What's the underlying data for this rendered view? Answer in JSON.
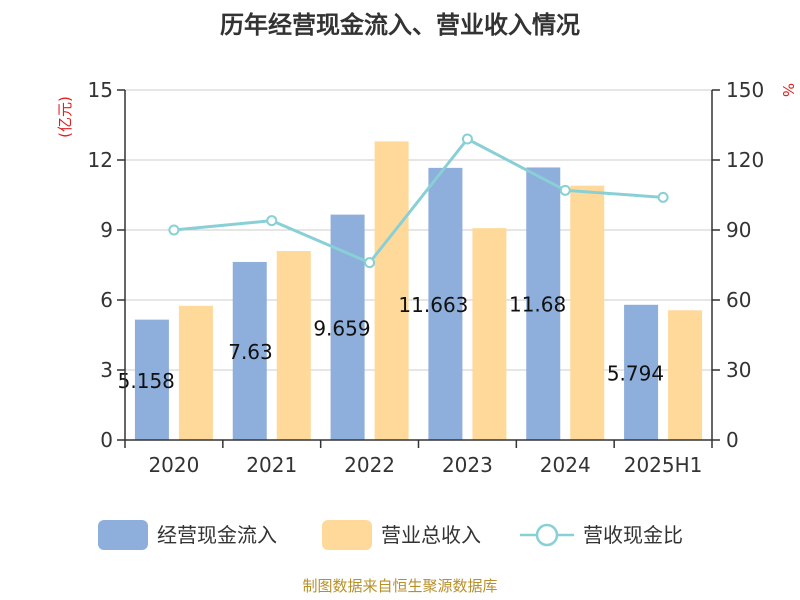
{
  "chart_data": {
    "type": "bar",
    "title": "历年经营现金流入、营业收入情况",
    "categories": [
      "2020",
      "2021",
      "2022",
      "2023",
      "2024",
      "2025H1"
    ],
    "y_left": {
      "unit": "(亿元)",
      "range": [
        0,
        15
      ],
      "ticks": [
        0,
        3,
        6,
        9,
        12,
        15
      ]
    },
    "y_right": {
      "unit": "%",
      "range": [
        0,
        150
      ],
      "ticks": [
        0,
        30,
        60,
        90,
        120,
        150
      ]
    },
    "series": [
      {
        "name": "经营现金流入",
        "type": "bar",
        "axis": "left",
        "color": "#8eaedb",
        "values": [
          5.158,
          7.63,
          9.659,
          11.663,
          11.68,
          5.794
        ],
        "labels": [
          "5.158",
          "7.63",
          "9.659",
          "11.663",
          "11.68",
          "5.794"
        ]
      },
      {
        "name": "营业总收入",
        "type": "bar",
        "axis": "left",
        "color": "#ffd99a",
        "values": [
          5.75,
          8.1,
          12.8,
          9.08,
          10.9,
          5.56
        ]
      },
      {
        "name": "营收现金比",
        "type": "line",
        "axis": "right",
        "color": "#88d0d6",
        "values": [
          90,
          94,
          76,
          129,
          107,
          104
        ]
      }
    ],
    "grid": true,
    "legend_position": "bottom"
  },
  "footer": "制图数据来自恒生聚源数据库"
}
